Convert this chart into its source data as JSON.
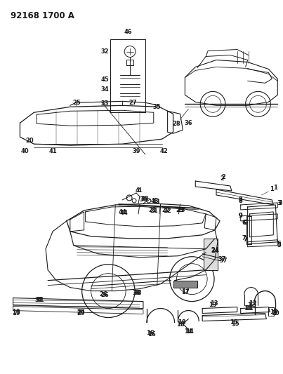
{
  "title": "92168 1700 A",
  "bg_color": "#ffffff",
  "line_color": "#1a1a1a",
  "title_fontsize": 8.5,
  "label_fontsize": 6.0,
  "fig_width": 4.03,
  "fig_height": 5.33,
  "dpi": 100
}
